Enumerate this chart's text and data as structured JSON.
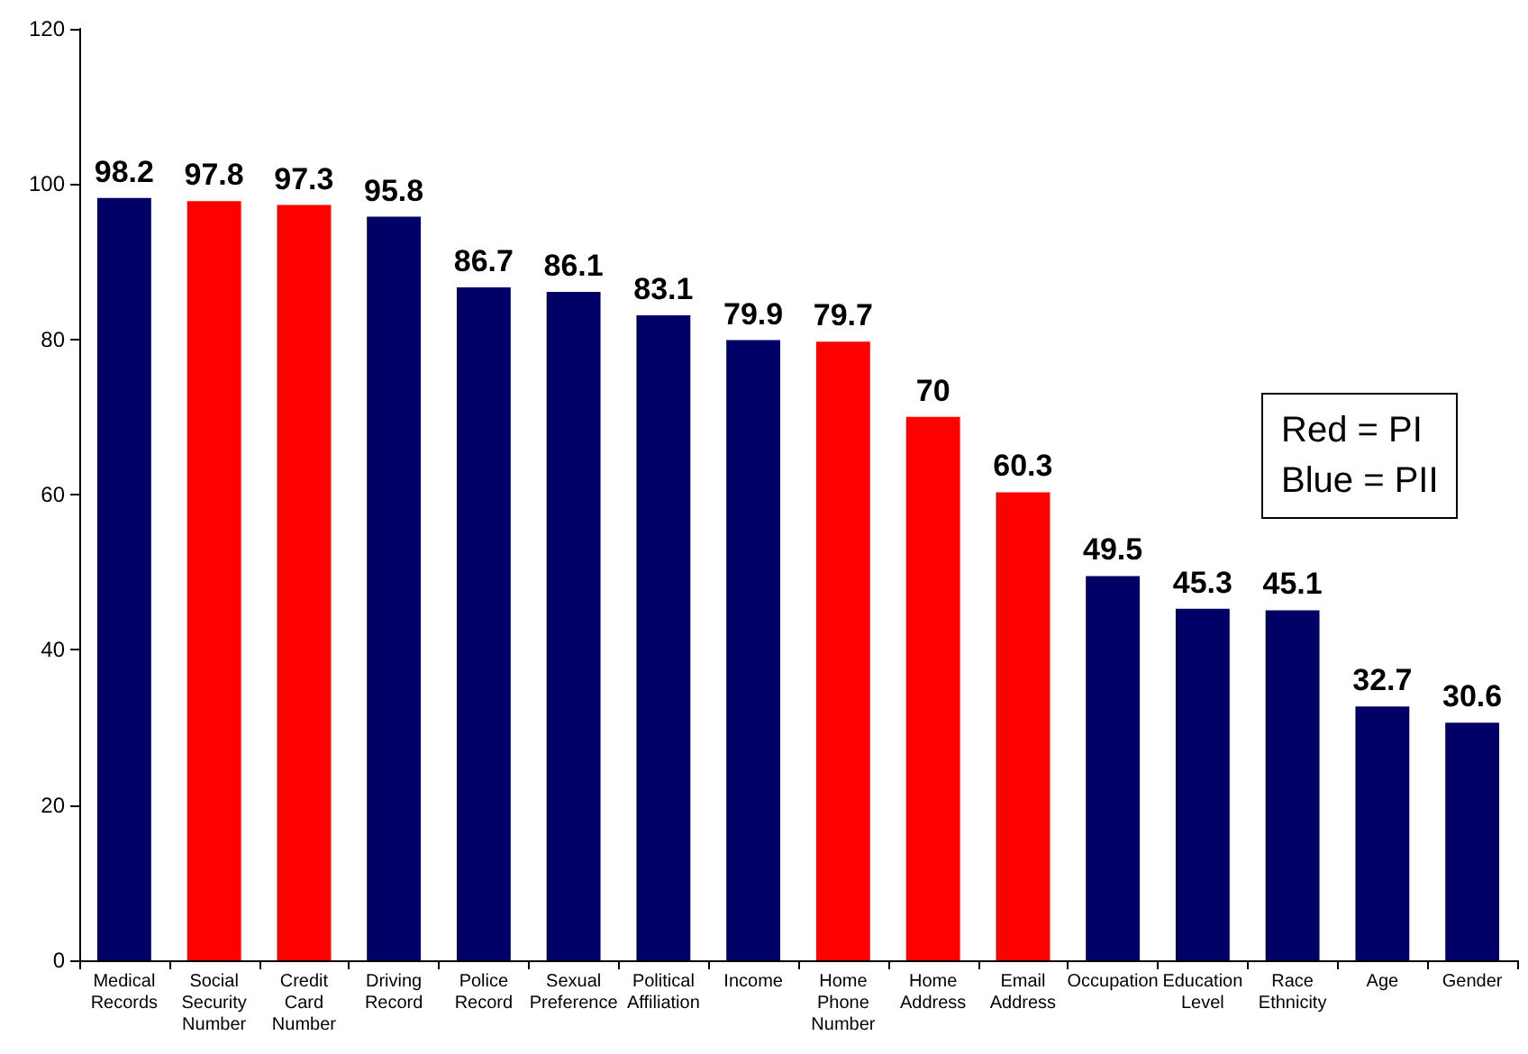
{
  "chart_data": {
    "type": "bar",
    "categories": [
      "Medical Records",
      "Social Security Number",
      "Credit Card Number",
      "Driving Record",
      "Police Record",
      "Sexual Preference",
      "Political Affiliation",
      "Income",
      "Home Phone Number",
      "Home Address",
      "Email Address",
      "Occupation",
      "Education Level",
      "Race Ethnicity",
      "Age",
      "Gender"
    ],
    "values": [
      98.2,
      97.8,
      97.3,
      95.8,
      86.7,
      86.1,
      83.1,
      79.9,
      79.7,
      70,
      60.3,
      49.5,
      45.3,
      45.1,
      32.7,
      30.6
    ],
    "colors": [
      "#000066",
      "#ff0000",
      "#ff0000",
      "#000066",
      "#000066",
      "#000066",
      "#000066",
      "#000066",
      "#ff0000",
      "#ff0000",
      "#ff0000",
      "#000066",
      "#000066",
      "#000066",
      "#000066",
      "#000066"
    ],
    "ylim": [
      0,
      120
    ],
    "yticks": [
      0,
      20,
      40,
      60,
      80,
      100,
      120
    ],
    "grid": false,
    "data_labels": true,
    "annotations": [
      "Red = PI",
      "Blue = PII"
    ]
  }
}
